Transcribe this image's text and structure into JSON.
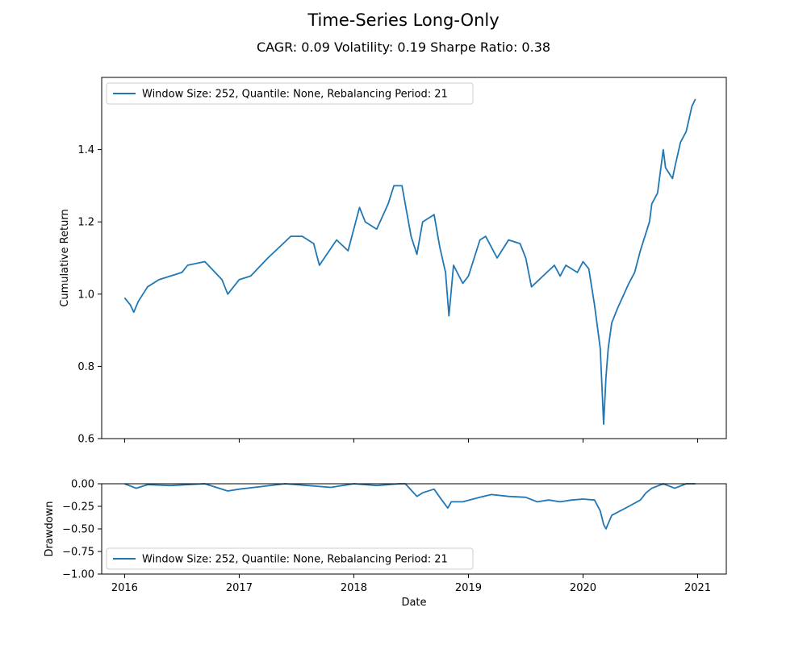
{
  "title": "Time-Series Long-Only",
  "subtitle": "CAGR: 0.09 Volatility: 0.19 Sharpe Ratio: 0.38",
  "colors": {
    "series": "#1f77b4",
    "axes": "#000000",
    "legend_border": "#cccccc"
  },
  "chart_data": [
    {
      "type": "line",
      "panel": "cumulative-return",
      "title": "",
      "xlabel": "",
      "ylabel": "Cumulative Return",
      "xlim": [
        2015.8,
        2021.25
      ],
      "ylim": [
        0.6,
        1.6
      ],
      "yticks": [
        "0.6",
        "0.8",
        "1.0",
        "1.2",
        "1.4"
      ],
      "xticks": [
        2016,
        2017,
        2018,
        2019,
        2020,
        2021
      ],
      "grid": false,
      "legend": "upper left",
      "series": [
        {
          "name": "Window Size: 252, Quantile: None, Rebalancing Period: 21",
          "x": [
            2016.0,
            2016.05,
            2016.08,
            2016.12,
            2016.2,
            2016.3,
            2016.4,
            2016.5,
            2016.55,
            2016.7,
            2016.85,
            2016.9,
            2017.0,
            2017.1,
            2017.25,
            2017.35,
            2017.45,
            2017.55,
            2017.65,
            2017.7,
            2017.85,
            2017.95,
            2018.05,
            2018.1,
            2018.2,
            2018.3,
            2018.35,
            2018.42,
            2018.5,
            2018.55,
            2018.6,
            2018.7,
            2018.75,
            2018.8,
            2018.83,
            2018.87,
            2018.95,
            2019.0,
            2019.1,
            2019.15,
            2019.25,
            2019.35,
            2019.45,
            2019.5,
            2019.55,
            2019.65,
            2019.75,
            2019.8,
            2019.85,
            2019.95,
            2020.0,
            2020.05,
            2020.1,
            2020.15,
            2020.18,
            2020.2,
            2020.22,
            2020.25,
            2020.3,
            2020.4,
            2020.45,
            2020.5,
            2020.58,
            2020.6,
            2020.65,
            2020.7,
            2020.72,
            2020.78,
            2020.8,
            2020.85,
            2020.9,
            2020.95,
            2020.98
          ],
          "y": [
            0.99,
            0.97,
            0.95,
            0.98,
            1.02,
            1.04,
            1.05,
            1.06,
            1.08,
            1.09,
            1.04,
            1.0,
            1.04,
            1.05,
            1.1,
            1.13,
            1.16,
            1.16,
            1.14,
            1.08,
            1.15,
            1.12,
            1.24,
            1.2,
            1.18,
            1.25,
            1.3,
            1.3,
            1.16,
            1.11,
            1.2,
            1.22,
            1.13,
            1.06,
            0.94,
            1.08,
            1.03,
            1.05,
            1.15,
            1.16,
            1.1,
            1.15,
            1.14,
            1.1,
            1.02,
            1.05,
            1.08,
            1.05,
            1.08,
            1.06,
            1.09,
            1.07,
            0.97,
            0.85,
            0.64,
            0.77,
            0.85,
            0.92,
            0.96,
            1.03,
            1.06,
            1.12,
            1.2,
            1.25,
            1.28,
            1.4,
            1.35,
            1.32,
            1.35,
            1.42,
            1.45,
            1.52,
            1.54
          ]
        }
      ]
    },
    {
      "type": "line",
      "panel": "drawdown",
      "title": "",
      "xlabel": "Date",
      "ylabel": "Drawdown",
      "xlim": [
        2015.8,
        2021.25
      ],
      "ylim": [
        -1.0,
        0.0
      ],
      "yticks": [
        "−1.00",
        "−0.75",
        "−0.50",
        "−0.25",
        "0.00"
      ],
      "xticks": [
        2016,
        2017,
        2018,
        2019,
        2020,
        2021
      ],
      "grid": false,
      "legend": "lower left",
      "series": [
        {
          "name": "Window Size: 252, Quantile: None, Rebalancing Period: 21",
          "x": [
            2016.0,
            2016.1,
            2016.2,
            2016.4,
            2016.7,
            2016.9,
            2017.0,
            2017.2,
            2017.4,
            2017.6,
            2017.8,
            2018.0,
            2018.2,
            2018.4,
            2018.45,
            2018.55,
            2018.6,
            2018.7,
            2018.75,
            2018.82,
            2018.85,
            2018.95,
            2019.1,
            2019.2,
            2019.35,
            2019.5,
            2019.6,
            2019.7,
            2019.8,
            2019.9,
            2020.0,
            2020.1,
            2020.15,
            2020.18,
            2020.2,
            2020.25,
            2020.4,
            2020.5,
            2020.55,
            2020.6,
            2020.7,
            2020.8,
            2020.9,
            2020.98
          ],
          "y": [
            0.0,
            -0.05,
            -0.01,
            -0.02,
            0.0,
            -0.08,
            -0.06,
            -0.03,
            0.0,
            -0.02,
            -0.04,
            0.0,
            -0.02,
            0.0,
            0.0,
            -0.14,
            -0.1,
            -0.06,
            -0.15,
            -0.27,
            -0.2,
            -0.2,
            -0.15,
            -0.12,
            -0.14,
            -0.15,
            -0.2,
            -0.18,
            -0.2,
            -0.18,
            -0.17,
            -0.18,
            -0.3,
            -0.45,
            -0.5,
            -0.35,
            -0.25,
            -0.18,
            -0.1,
            -0.05,
            0.0,
            -0.05,
            0.0,
            0.0
          ]
        }
      ]
    }
  ]
}
